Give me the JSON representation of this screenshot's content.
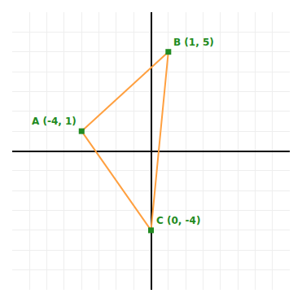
{
  "chart_data": {
    "type": "line",
    "series": [
      {
        "type": "line",
        "color": "#FFA040",
        "x": [
          -4,
          1,
          0,
          -4
        ],
        "values": [
          1,
          5,
          -4,
          1
        ]
      },
      {
        "type": "scatter",
        "marker": "square",
        "color": "#228B22",
        "x": [
          -4,
          1,
          0
        ],
        "values": [
          1,
          5,
          -4
        ]
      }
    ],
    "annotations": [
      {
        "text": "A (-4, 1)",
        "x": -4,
        "y": 1
      },
      {
        "text": "B (1, 5)",
        "x": 1,
        "y": 5
      },
      {
        "text": "C (0, -4)",
        "x": 0,
        "y": -4
      }
    ],
    "xlim": [
      -8,
      8
    ],
    "ylim": [
      -7,
      7
    ],
    "xticks": [
      -8,
      -7,
      -6,
      -5,
      -4,
      -3,
      -2,
      -1,
      0,
      1,
      2,
      3,
      4,
      5,
      6,
      7,
      8
    ],
    "yticks": [
      -7,
      -6,
      -5,
      -4,
      -3,
      -2,
      -1,
      0,
      1,
      2,
      3,
      4,
      5,
      6,
      7
    ],
    "grid": true,
    "tick_labels": false
  }
}
